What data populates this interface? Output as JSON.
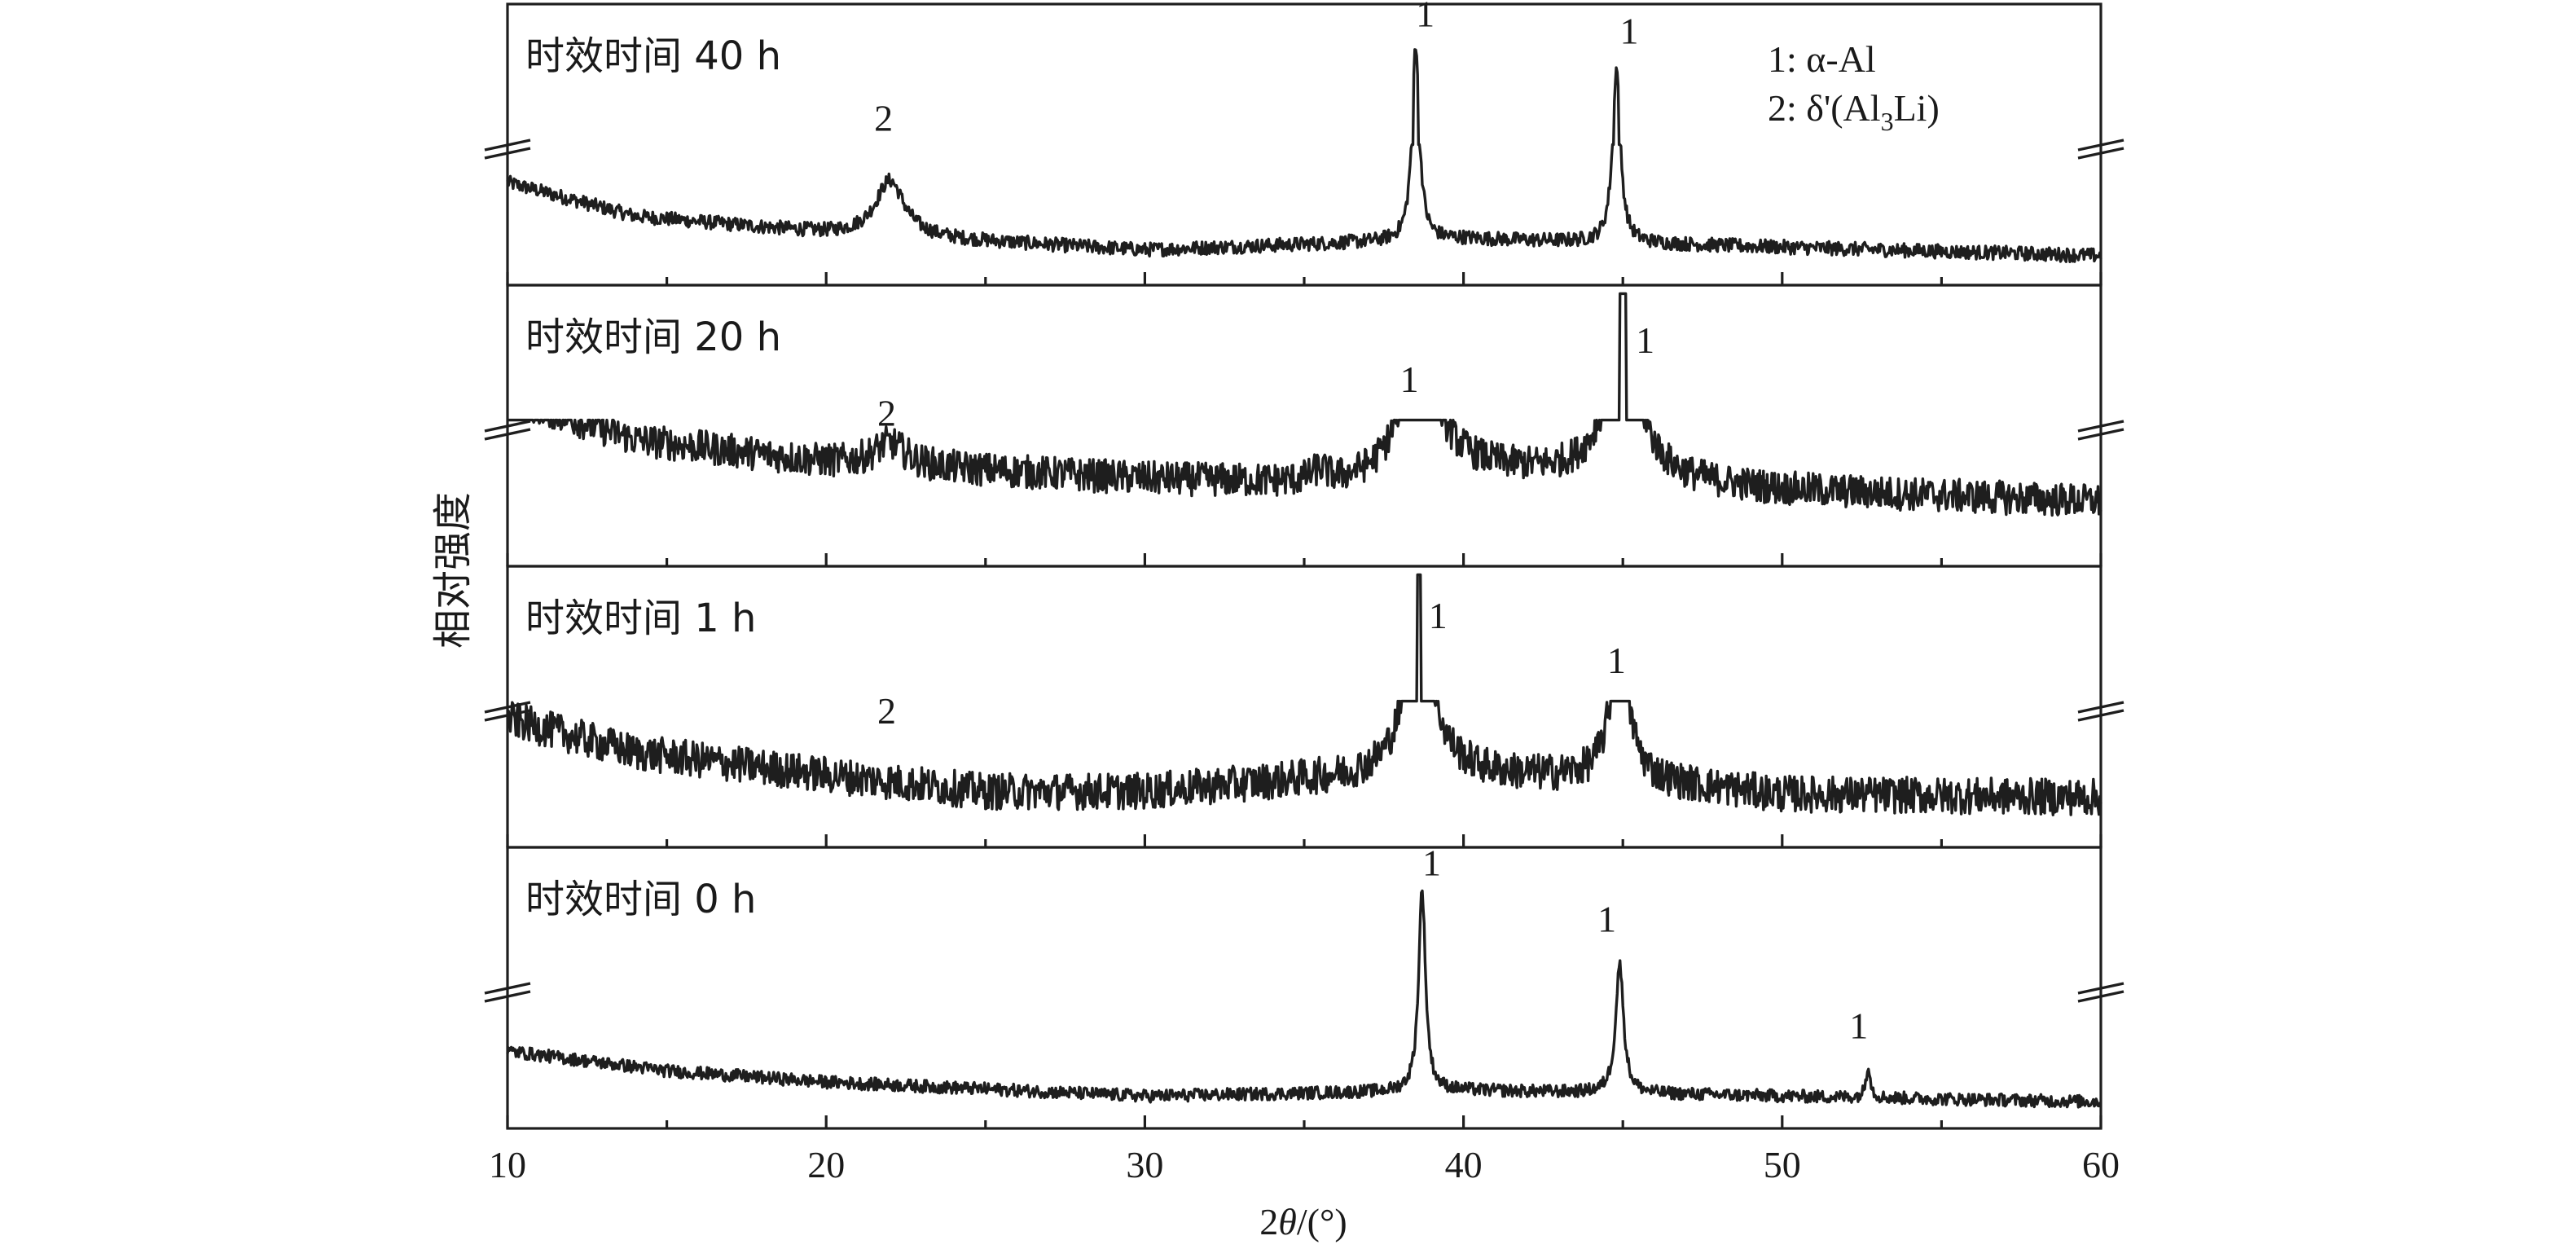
{
  "chart_data": {
    "type": "line",
    "xlabel": "2θ/(°)",
    "ylabel": "相对强度",
    "xlim": [
      10,
      60
    ],
    "x_ticks": [
      "10",
      "20",
      "30",
      "40",
      "50",
      "60"
    ],
    "legend": {
      "placement": "top-right",
      "entries": [
        {
          "key": "1",
          "text": "1: α-Al"
        },
        {
          "key": "2",
          "text": "2: δ'(Al",
          "sub": "3",
          "tail": "Li)"
        }
      ]
    },
    "panels": [
      {
        "label": "时效时间 40 h",
        "base": 0.18,
        "noise": 0.05,
        "bg": [
          [
            10,
            0.32
          ],
          [
            14,
            0.2
          ],
          [
            20,
            0.14
          ],
          [
            30,
            0.08
          ],
          [
            40,
            0.12
          ],
          [
            50,
            0.09
          ],
          [
            60,
            0.06
          ]
        ],
        "peaks": [
          [
            22.0,
            0.2,
            0.55
          ],
          [
            38.5,
            0.7,
            0.14
          ],
          [
            44.8,
            0.62,
            0.15
          ]
        ],
        "clip": 0.48,
        "annotations": [
          {
            "text": "2",
            "x": 21.8,
            "y": 0.55
          },
          {
            "text": "1",
            "x": 38.8,
            "y": 0.92
          },
          {
            "text": "1",
            "x": 45.2,
            "y": 0.86
          }
        ]
      },
      {
        "label": "时效时间 20 h",
        "base": 0.2,
        "noise": 0.12,
        "bg": [
          [
            10,
            0.55
          ],
          [
            14,
            0.4
          ],
          [
            20,
            0.32
          ],
          [
            30,
            0.26
          ],
          [
            36,
            0.24
          ],
          [
            40,
            0.3
          ],
          [
            46,
            0.25
          ],
          [
            50,
            0.22
          ],
          [
            60,
            0.18
          ]
        ],
        "peaks": [
          [
            22.0,
            0.08,
            0.6
          ],
          [
            35.5,
            0.04,
            0.3
          ],
          [
            38.6,
            0.55,
            0.55
          ],
          [
            45.0,
            0.82,
            0.18
          ],
          [
            45.0,
            0.35,
            0.7
          ]
        ],
        "clip": 0.5,
        "annotations": [
          {
            "text": "2",
            "x": 21.9,
            "y": 0.5
          },
          {
            "text": "1",
            "x": 38.3,
            "y": 0.62
          },
          {
            "text": "1",
            "x": 45.7,
            "y": 0.76
          }
        ]
      },
      {
        "label": "时效时间 1 h",
        "base": 0.15,
        "noise": 0.13,
        "bg": [
          [
            10,
            0.42
          ],
          [
            14,
            0.3
          ],
          [
            20,
            0.22
          ],
          [
            25,
            0.16
          ],
          [
            30,
            0.16
          ],
          [
            35,
            0.2
          ],
          [
            40,
            0.22
          ],
          [
            45,
            0.2
          ],
          [
            50,
            0.15
          ],
          [
            60,
            0.14
          ]
        ],
        "peaks": [
          [
            38.6,
            0.85,
            0.14
          ],
          [
            38.6,
            0.4,
            0.6
          ],
          [
            44.9,
            0.48,
            0.35
          ]
        ],
        "clip": 0.5,
        "annotations": [
          {
            "text": "2",
            "x": 21.9,
            "y": 0.44
          },
          {
            "text": "1",
            "x": 39.2,
            "y": 0.78
          },
          {
            "text": "1",
            "x": 44.8,
            "y": 0.62
          }
        ]
      },
      {
        "label": "时效时间 0 h",
        "base": 0.14,
        "noise": 0.045,
        "bg": [
          [
            10,
            0.24
          ],
          [
            15,
            0.17
          ],
          [
            20,
            0.13
          ],
          [
            30,
            0.08
          ],
          [
            40,
            0.1
          ],
          [
            50,
            0.08
          ],
          [
            60,
            0.06
          ]
        ],
        "peaks": [
          [
            38.7,
            0.72,
            0.13
          ],
          [
            44.9,
            0.46,
            0.15
          ],
          [
            52.7,
            0.12,
            0.08
          ]
        ],
        "clip": 0.95,
        "annotations": [
          {
            "text": "1",
            "x": 39.0,
            "y": 0.9
          },
          {
            "text": "1",
            "x": 44.5,
            "y": 0.7
          },
          {
            "text": "1",
            "x": 52.4,
            "y": 0.32
          }
        ]
      }
    ]
  }
}
